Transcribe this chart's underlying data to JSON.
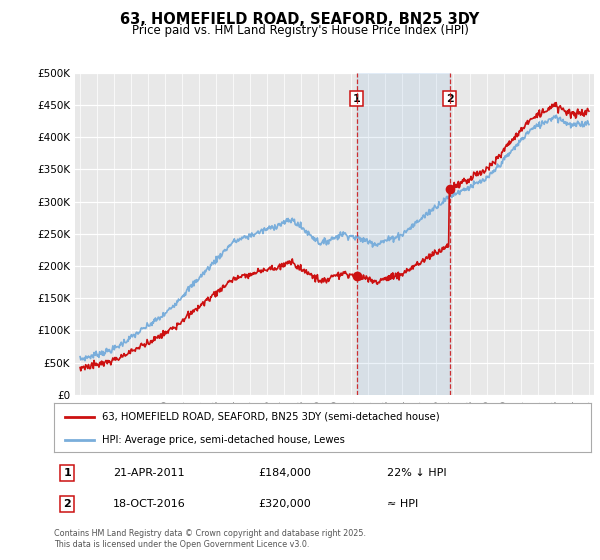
{
  "title": "63, HOMEFIELD ROAD, SEAFORD, BN25 3DY",
  "subtitle": "Price paid vs. HM Land Registry's House Price Index (HPI)",
  "ylim": [
    0,
    500000
  ],
  "yticks": [
    0,
    50000,
    100000,
    150000,
    200000,
    250000,
    300000,
    350000,
    400000,
    450000,
    500000
  ],
  "ytick_labels": [
    "£0",
    "£50K",
    "£100K",
    "£150K",
    "£200K",
    "£250K",
    "£300K",
    "£350K",
    "£400K",
    "£450K",
    "£500K"
  ],
  "hpi_color": "#7aaedb",
  "price_color": "#cc1111",
  "transaction1_date": 2011.3,
  "transaction1_price": 184000,
  "transaction2_date": 2016.79,
  "transaction2_price": 320000,
  "legend_entries": [
    {
      "label": "63, HOMEFIELD ROAD, SEAFORD, BN25 3DY (semi-detached house)",
      "color": "#cc1111"
    },
    {
      "label": "HPI: Average price, semi-detached house, Lewes",
      "color": "#7aaedb"
    }
  ],
  "annotation1": {
    "num": "1",
    "date": "21-APR-2011",
    "price": "£184,000",
    "pct": "22% ↓ HPI"
  },
  "annotation2": {
    "num": "2",
    "date": "18-OCT-2016",
    "price": "£320,000",
    "pct": "≈ HPI"
  },
  "footer": "Contains HM Land Registry data © Crown copyright and database right 2025.\nThis data is licensed under the Open Government Licence v3.0.",
  "background_color": "#ffffff",
  "plot_bg_color": "#e8e8e8"
}
